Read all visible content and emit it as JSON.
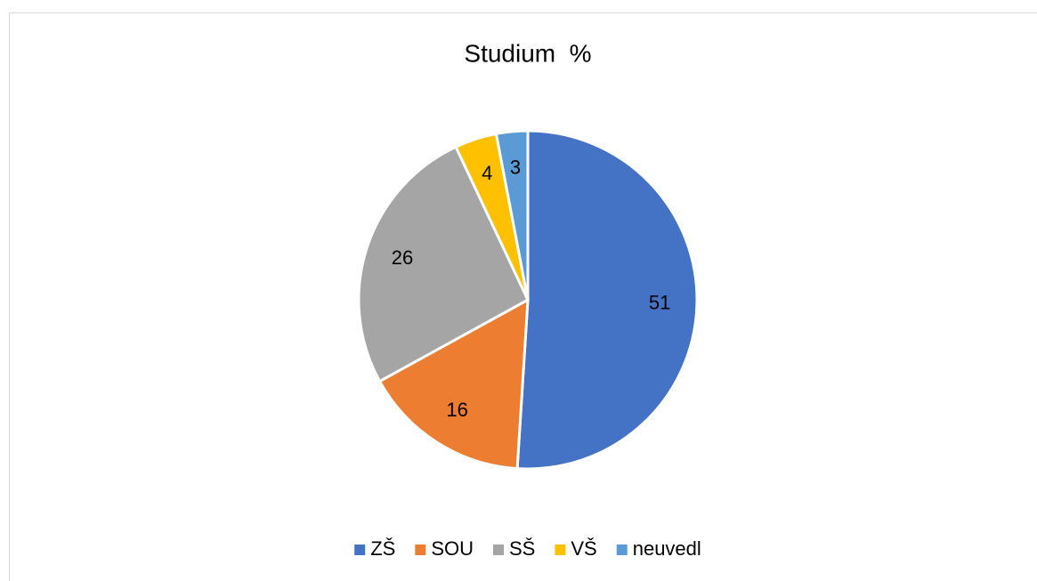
{
  "chart_data": {
    "type": "pie",
    "title": "Studium  %",
    "categories": [
      "ZŠ",
      "SOU",
      "SŠ",
      "VŠ",
      "neuvedl"
    ],
    "values": [
      51,
      16,
      26,
      4,
      3
    ],
    "colors": [
      "#4472c4",
      "#ed7d31",
      "#a5a5a5",
      "#ffc000",
      "#5b9bd5"
    ],
    "legend": "bottom"
  }
}
